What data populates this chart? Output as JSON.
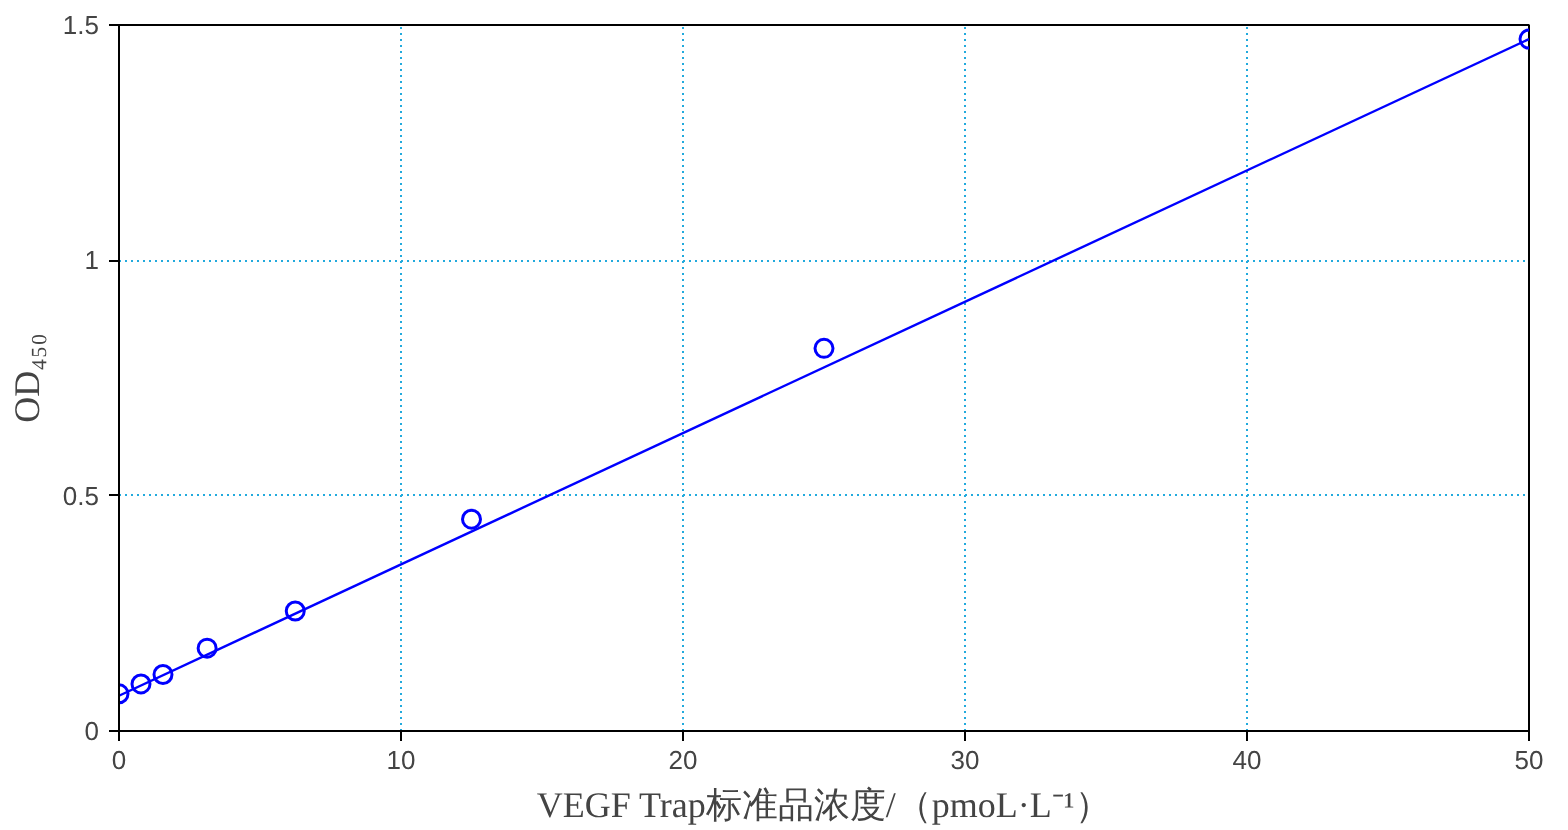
{
  "chart_data": {
    "type": "scatter",
    "xlabel": "VEGF Trap标准品浓度/（pmoL·L⁻¹）",
    "ylabel": "OD₄₅₀",
    "xlim": [
      0,
      50
    ],
    "ylim": [
      0,
      1.5
    ],
    "xticks": [
      0,
      10,
      20,
      30,
      40,
      50
    ],
    "yticks": [
      0,
      0.5,
      1,
      1.5
    ],
    "grid": true,
    "series": [
      {
        "marker": "circle",
        "color": "#0000ff",
        "x": [
          0,
          0.78,
          1.56,
          3.125,
          6.25,
          12.5,
          25,
          50
        ],
        "values": [
          0.079,
          0.1,
          0.12,
          0.176,
          0.255,
          0.45,
          0.813,
          1.47
        ]
      },
      {
        "type": "line",
        "marker": "none",
        "line_style": "solid",
        "color": "#0000ff",
        "x": [
          0,
          50
        ],
        "values": [
          0.075,
          1.47
        ]
      }
    ]
  }
}
